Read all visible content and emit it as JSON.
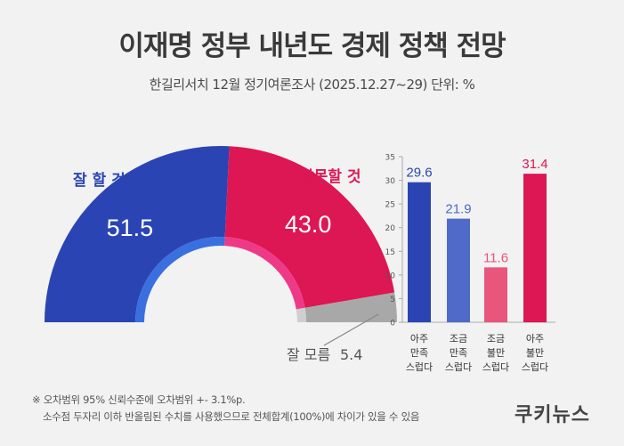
{
  "header": {
    "title": "이재명 정부 내년도 경제 정책 전망",
    "subtitle": "한길리서치 12월 정기여론조사 (2025.12.27~29) 단위: %"
  },
  "notes": {
    "line1": "※ 오차범위 95% 신뢰수준에 오차범위 +- 3.1%p.",
    "line2": "소수점 두자리 이하 반올림된 수치를 사용했으므로 전체합계(100%)에 차이가 있을 수 있음"
  },
  "brand": "쿠키뉴스",
  "colors": {
    "good": "#2a45b3",
    "bad": "#dc1753",
    "unknown": "#a8a8a8",
    "very_satisfied": "#2a45b3",
    "somewhat_satisfied": "#4f6ac9",
    "somewhat_dissatisfied": "#e8557d",
    "very_dissatisfied": "#dc1753"
  },
  "chart_data": [
    {
      "type": "pie",
      "style": "half-donut",
      "slices": [
        {
          "label": "잘 할 것",
          "value": 51.5,
          "color": "#2a45b3"
        },
        {
          "label": "잘못할 것",
          "value": 43.0,
          "color": "#dc1753"
        },
        {
          "label": "잘 모름",
          "value": 5.4,
          "color": "#a8a8a8"
        }
      ],
      "value_labels": [
        "51.5",
        "43.0",
        "5.4"
      ]
    },
    {
      "type": "bar",
      "categories": [
        "아주 만족 스럽다",
        "조금 만족 스럽다",
        "조금 불만 스럽다",
        "아주 불만 스럽다"
      ],
      "category_lines": [
        [
          "아주",
          "만족",
          "스럽다"
        ],
        [
          "조금",
          "만족",
          "스럽다"
        ],
        [
          "조금",
          "불만",
          "스럽다"
        ],
        [
          "아주",
          "불만",
          "스럽다"
        ]
      ],
      "values": [
        29.6,
        21.9,
        11.6,
        31.4
      ],
      "value_labels": [
        "29.6",
        "21.9",
        "11.6",
        "31.4"
      ],
      "colors": [
        "#2a45b3",
        "#4f6ac9",
        "#e8557d",
        "#dc1753"
      ],
      "label_colors": [
        "#2a45b3",
        "#4f6ac9",
        "#e8557d",
        "#dc1753"
      ],
      "ylim": [
        0,
        35
      ],
      "yticks": [
        "0",
        "5",
        "10",
        "15",
        "20",
        "25",
        "30",
        "35"
      ],
      "grid": false
    }
  ]
}
